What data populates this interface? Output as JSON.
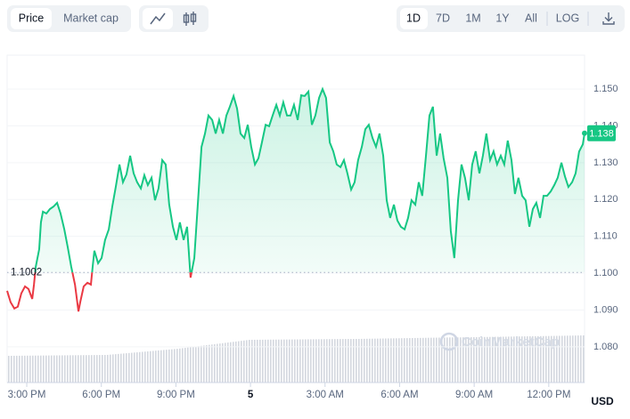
{
  "toolbar": {
    "tabs": [
      "Price",
      "Market cap"
    ],
    "ranges": [
      "1D",
      "7D",
      "1M",
      "1Y",
      "All"
    ],
    "scale": "LOG"
  },
  "chart_data": {
    "type": "line",
    "currency": "USD",
    "watermark": "CoinMarketCap",
    "x": [
      -0.79,
      -0.65,
      -0.5,
      -0.36,
      -0.22,
      -0.07,
      0.07,
      0.22,
      0.29,
      0.36,
      0.43,
      0.5,
      0.57,
      0.65,
      0.79,
      0.93,
      1.08,
      1.22,
      1.36,
      1.51,
      1.65,
      1.79,
      1.94,
      2.08,
      2.15,
      2.29,
      2.44,
      2.58,
      2.65,
      2.72,
      2.87,
      3.01,
      3.15,
      3.3,
      3.44,
      3.58,
      3.73,
      3.87,
      4.01,
      4.16,
      4.3,
      4.44,
      4.59,
      4.73,
      4.87,
      5.02,
      5.16,
      5.3,
      5.45,
      5.59,
      5.73,
      5.88,
      6.02,
      6.16,
      6.31,
      6.45,
      6.59,
      6.74,
      6.88,
      7.03,
      7.17,
      7.31,
      7.46,
      7.6,
      7.74,
      7.89,
      8.03,
      8.17,
      8.32,
      8.46,
      8.6,
      8.75,
      8.89,
      9.03,
      9.18,
      9.32,
      9.46,
      9.61,
      9.75,
      9.89,
      10.04,
      10.18,
      10.32,
      10.47,
      10.61,
      10.75,
      10.9,
      11.04,
      11.18,
      11.33,
      11.47,
      11.61,
      11.76,
      11.9,
      12.04,
      12.19,
      12.33,
      12.47,
      12.62,
      12.76,
      12.9,
      13.05,
      13.19,
      13.33,
      13.48,
      13.62,
      13.76,
      13.91,
      14.05,
      14.19,
      14.34,
      14.48,
      14.62,
      14.77,
      14.91,
      15.05,
      15.2,
      15.34,
      15.48,
      15.63,
      15.77,
      15.91,
      16.06,
      16.2,
      16.34,
      16.49,
      16.63,
      16.77,
      16.92,
      17.06,
      17.2,
      17.35,
      17.49,
      17.63,
      17.78,
      17.92,
      18.06,
      18.21,
      18.35,
      18.49,
      18.64,
      18.78,
      18.92,
      19.07,
      19.21,
      19.35,
      19.5,
      19.64,
      19.78,
      19.93,
      20.07,
      20.22,
      20.36,
      20.5,
      20.65,
      20.79,
      20.93,
      21.08,
      21.22,
      21.36,
      21.51,
      21.65,
      21.79,
      21.94,
      22.08,
      22.22,
      22.37,
      22.44
    ],
    "series": [
      {
        "color": "#16c784",
        "below_color": "#ea3943",
        "values": [
          1.0952,
          1.0921,
          1.0904,
          1.0909,
          1.0945,
          1.0964,
          1.0957,
          1.093,
          1.0969,
          1.1017,
          1.1041,
          1.1065,
          1.1138,
          1.1167,
          1.1162,
          1.1174,
          1.1181,
          1.1191,
          1.1162,
          1.1119,
          1.107,
          1.1017,
          1.0969,
          1.0896,
          1.0921,
          1.0964,
          1.0974,
          1.0969,
          1.1017,
          1.1061,
          1.1027,
          1.1041,
          1.109,
          1.1119,
          1.1181,
          1.1234,
          1.1295,
          1.1247,
          1.1268,
          1.1319,
          1.1271,
          1.1247,
          1.123,
          1.1266,
          1.1239,
          1.1259,
          1.1198,
          1.123,
          1.1307,
          1.1295,
          1.1186,
          1.1126,
          1.109,
          1.1138,
          1.109,
          1.1126,
          1.0988,
          1.1041,
          1.1186,
          1.1343,
          1.1379,
          1.1428,
          1.1416,
          1.1379,
          1.1416,
          1.1379,
          1.1428,
          1.1452,
          1.1481,
          1.1447,
          1.1379,
          1.1367,
          1.1403,
          1.1343,
          1.1295,
          1.1312,
          1.1355,
          1.1403,
          1.1399,
          1.1428,
          1.1457,
          1.1428,
          1.1464,
          1.1428,
          1.1428,
          1.1457,
          1.1416,
          1.1483,
          1.1481,
          1.1493,
          1.1403,
          1.1428,
          1.1476,
          1.15,
          1.1476,
          1.1355,
          1.1331,
          1.1295,
          1.1288,
          1.1307,
          1.1271,
          1.1227,
          1.1247,
          1.1307,
          1.1343,
          1.1391,
          1.1403,
          1.1367,
          1.1343,
          1.1379,
          1.1319,
          1.1198,
          1.115,
          1.1186,
          1.1143,
          1.1126,
          1.1119,
          1.115,
          1.1198,
          1.1186,
          1.1247,
          1.121,
          1.1319,
          1.1428,
          1.1452,
          1.1319,
          1.1379,
          1.1312,
          1.1259,
          1.1114,
          1.1041,
          1.1198,
          1.1295,
          1.1259,
          1.1198,
          1.1295,
          1.1331,
          1.1271,
          1.1319,
          1.1379,
          1.1307,
          1.1331,
          1.1295,
          1.1319,
          1.1295,
          1.136,
          1.1307,
          1.1215,
          1.1259,
          1.121,
          1.1198,
          1.1126,
          1.1174,
          1.1191,
          1.115,
          1.121,
          1.121,
          1.1222,
          1.1239,
          1.1259,
          1.13,
          1.1263,
          1.1234,
          1.1247,
          1.1271,
          1.133,
          1.135,
          1.138
        ]
      }
    ],
    "reference": {
      "value": 1.1002,
      "label": "1.1002"
    },
    "current_price": {
      "value": 1.138,
      "label": "1.138"
    },
    "xlim": [
      -0.79,
      22.44
    ],
    "xticks": [
      {
        "value": 0,
        "label": "3:00 PM"
      },
      {
        "value": 3,
        "label": "6:00 PM"
      },
      {
        "value": 6,
        "label": "9:00 PM"
      },
      {
        "value": 9,
        "label": "5"
      },
      {
        "value": 12,
        "label": "3:00 AM"
      },
      {
        "value": 15,
        "label": "6:00 AM"
      },
      {
        "value": 18,
        "label": "9:00 AM"
      },
      {
        "value": 21,
        "label": "12:00 PM"
      }
    ],
    "ylim": [
      1.0703,
      1.1592
    ],
    "yticks": [
      {
        "value": 1.08,
        "label": "1.080"
      },
      {
        "value": 1.09,
        "label": "1.090"
      },
      {
        "value": 1.1,
        "label": "1.100"
      },
      {
        "value": 1.11,
        "label": "1.110"
      },
      {
        "value": 1.12,
        "label": "1.120"
      },
      {
        "value": 1.13,
        "label": "1.130"
      },
      {
        "value": 1.14,
        "label": "1.140"
      },
      {
        "value": 1.15,
        "label": "1.150"
      }
    ],
    "grid": true
  }
}
